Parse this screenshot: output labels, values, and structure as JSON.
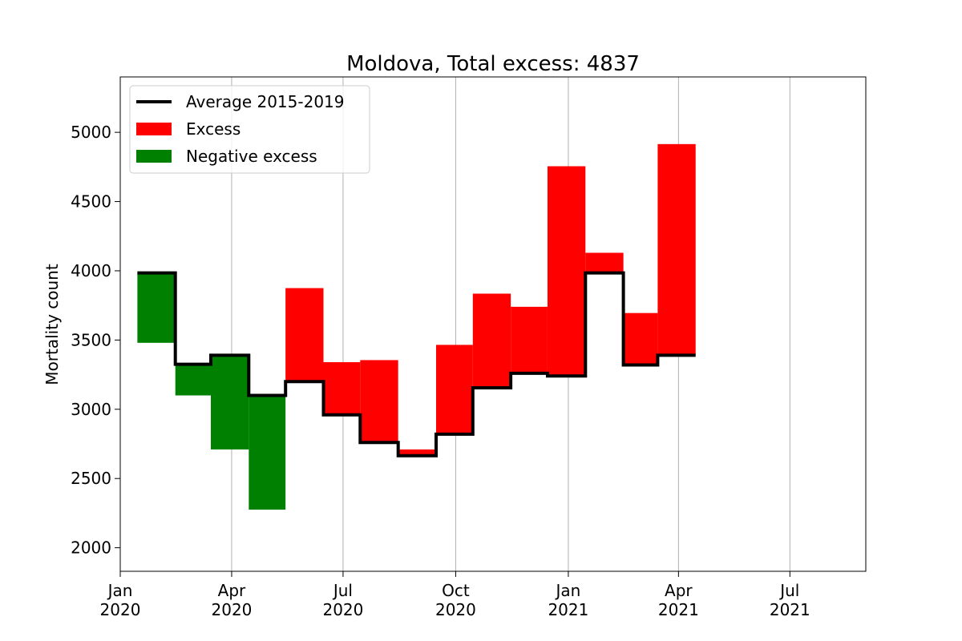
{
  "chart_data": {
    "type": "bar",
    "title": "Moldova, Total excess: 4837",
    "xlabel": "",
    "ylabel": "Mortality count",
    "ylim": [
      1830,
      5400
    ],
    "yticks": [
      2000,
      2500,
      3000,
      3500,
      4000,
      4500,
      5000
    ],
    "xlim": [
      "2020-01-01",
      "2021-09-01"
    ],
    "xticks": [
      {
        "date": "2020-01-01",
        "line1": "Jan",
        "line2": "2020"
      },
      {
        "date": "2020-04-01",
        "line1": "Apr",
        "line2": "2020"
      },
      {
        "date": "2020-07-01",
        "line1": "Jul",
        "line2": "2020"
      },
      {
        "date": "2020-10-01",
        "line1": "Oct",
        "line2": "2020"
      },
      {
        "date": "2021-01-01",
        "line1": "Jan",
        "line2": "2021"
      },
      {
        "date": "2021-04-01",
        "line1": "Apr",
        "line2": "2021"
      },
      {
        "date": "2021-07-01",
        "line1": "Jul",
        "line2": "2021"
      }
    ],
    "grid": "x",
    "legend_position": "top-left",
    "legend": [
      {
        "label": "Average 2015-2019",
        "kind": "line",
        "color": "#000000"
      },
      {
        "label": "Excess",
        "kind": "patch",
        "color": "#ff0000"
      },
      {
        "label": "Negative excess",
        "kind": "patch",
        "color": "#008000"
      }
    ],
    "colors": {
      "excess": "#ff0000",
      "negative_excess": "#008000",
      "average": "#000000"
    },
    "months": [
      {
        "start": "2020-01-15",
        "end": "2020-02-15",
        "average": 3985,
        "actual": 3480
      },
      {
        "start": "2020-02-15",
        "end": "2020-03-15",
        "average": 3325,
        "actual": 3100
      },
      {
        "start": "2020-03-15",
        "end": "2020-04-15",
        "average": 3390,
        "actual": 2710
      },
      {
        "start": "2020-04-15",
        "end": "2020-05-15",
        "average": 3100,
        "actual": 2275
      },
      {
        "start": "2020-05-15",
        "end": "2020-06-15",
        "average": 3200,
        "actual": 3875
      },
      {
        "start": "2020-06-15",
        "end": "2020-07-15",
        "average": 2960,
        "actual": 3340
      },
      {
        "start": "2020-07-15",
        "end": "2020-08-15",
        "average": 2760,
        "actual": 3355
      },
      {
        "start": "2020-08-15",
        "end": "2020-09-15",
        "average": 2665,
        "actual": 2710
      },
      {
        "start": "2020-09-15",
        "end": "2020-10-15",
        "average": 2820,
        "actual": 3465
      },
      {
        "start": "2020-10-15",
        "end": "2020-11-15",
        "average": 3155,
        "actual": 3835
      },
      {
        "start": "2020-11-15",
        "end": "2020-12-15",
        "average": 3260,
        "actual": 3740
      },
      {
        "start": "2020-12-15",
        "end": "2021-01-15",
        "average": 3240,
        "actual": 4755
      },
      {
        "start": "2021-01-15",
        "end": "2021-02-15",
        "average": 3985,
        "actual": 4130
      },
      {
        "start": "2021-02-15",
        "end": "2021-03-15",
        "average": 3320,
        "actual": 3695
      },
      {
        "start": "2021-03-15",
        "end": "2021-04-15",
        "average": 3390,
        "actual": 4915
      }
    ]
  }
}
